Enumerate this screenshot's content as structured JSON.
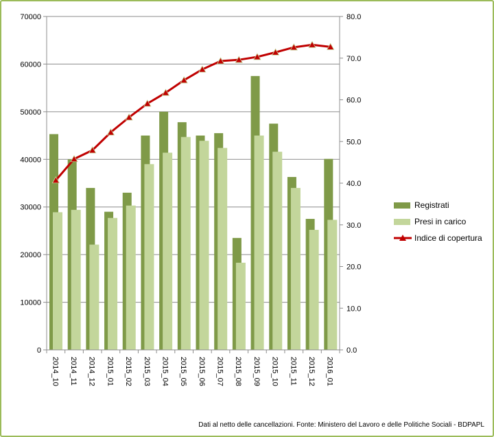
{
  "chart_data": {
    "type": "bar+line",
    "categories": [
      "2014_10",
      "2014_11",
      "2014_12",
      "2015_01",
      "2015_02",
      "2015_03",
      "2015_04",
      "2015_05",
      "2015_06",
      "2015_07",
      "2015_08",
      "2015_09",
      "2015_10",
      "2015_11",
      "2015_12",
      "2016_01"
    ],
    "series": [
      {
        "name": "Registrati",
        "type": "bar",
        "axis": "left",
        "color": "#7f9a48",
        "values": [
          45300,
          40000,
          34000,
          29000,
          33000,
          45000,
          50000,
          47800,
          45000,
          45500,
          23500,
          57500,
          47500,
          36300,
          27500,
          40100
        ]
      },
      {
        "name": "Presi in carico",
        "type": "bar",
        "axis": "left",
        "color": "#c3d69b",
        "values": [
          28900,
          29400,
          22100,
          27700,
          30300,
          39000,
          41400,
          44700,
          43900,
          42400,
          18300,
          45000,
          41600,
          34000,
          25200,
          27300
        ]
      },
      {
        "name": "Indice di copertura",
        "type": "line",
        "axis": "right",
        "color": "#c00000",
        "values": [
          40.7,
          45.8,
          47.9,
          52.2,
          55.8,
          59.1,
          61.7,
          64.7,
          67.3,
          69.3,
          69.6,
          70.3,
          71.4,
          72.6,
          73.2,
          72.7
        ]
      }
    ],
    "ylim": [
      0,
      70000
    ],
    "y_ticks": [
      "0",
      "10000",
      "20000",
      "30000",
      "40000",
      "50000",
      "60000",
      "70000"
    ],
    "y2lim": [
      0,
      80
    ],
    "y2_ticks": [
      "0.0",
      "10.0",
      "20.0",
      "30.0",
      "40.0",
      "50.0",
      "60.0",
      "70.0",
      "80.0"
    ],
    "grid": true,
    "legend": "right"
  },
  "footer": "Dati al netto delle cancellazioni. Fonte: Ministero del Lavoro e delle Politiche Sociali - BDPAPL"
}
